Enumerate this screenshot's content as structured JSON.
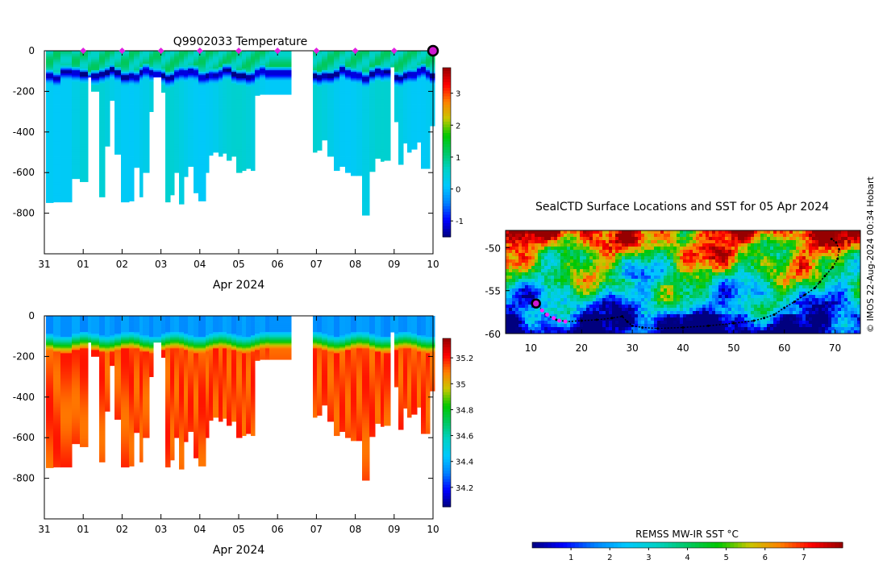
{
  "chart_data": [
    {
      "type": "heatmap",
      "id": "temperature",
      "title": "Q9902033  Temperature",
      "xlabel": "Apr 2024",
      "x_tick_labels": [
        "31",
        "01",
        "02",
        "03",
        "04",
        "05",
        "06",
        "07",
        "08",
        "09",
        "10"
      ],
      "x_range_days": [
        0,
        10
      ],
      "ylim": [
        -1000,
        0
      ],
      "y_ticks": [
        0,
        -200,
        -400,
        -600,
        -800
      ],
      "colorbar": {
        "min": -1.5,
        "max": 3.8,
        "ticks": [
          -1,
          0,
          1,
          2,
          3
        ],
        "colors": [
          "#00007f",
          "#0000ff",
          "#0080ff",
          "#00c8ff",
          "#00d2c8",
          "#00c864",
          "#00c800",
          "#c8c800",
          "#ff8000",
          "#ff0000",
          "#960000"
        ]
      },
      "profile_marker_days": [
        1,
        2,
        3,
        4,
        5,
        6,
        7,
        8,
        9
      ],
      "current_marker_day": 10,
      "gap_days": [
        6.35,
        6.9
      ],
      "profiles_note": "dive profiles: upper ~100 m warm (~0.5-1.2 °C), cold layer near 120-130 m (~-1.3 °C), deeper water ~0.3-0.5 °C"
    },
    {
      "type": "heatmap",
      "id": "salinity",
      "title": "",
      "xlabel": "Apr 2024",
      "x_tick_labels": [
        "31",
        "01",
        "02",
        "03",
        "04",
        "05",
        "06",
        "07",
        "08",
        "09",
        "10"
      ],
      "x_range_days": [
        0,
        10
      ],
      "ylim": [
        -1000,
        0
      ],
      "y_ticks": [
        0,
        -200,
        -400,
        -600,
        -800
      ],
      "colorbar": {
        "min": 34.05,
        "max": 35.35,
        "ticks": [
          34.2,
          34.4,
          34.6,
          34.8,
          35,
          35.2
        ],
        "colors": [
          "#00007f",
          "#0000ff",
          "#0080ff",
          "#00c8ff",
          "#00d2c8",
          "#00c864",
          "#00c800",
          "#c8c800",
          "#ff8000",
          "#ff0000",
          "#960000"
        ]
      },
      "profiles_note": "fresh surface (~34.3) above ~100 m, halocline 100-200 m, saline deep water (~35.2)"
    },
    {
      "type": "heatmap",
      "id": "sst_map",
      "title": "SealCTD Surface Locations and SST for 05 Apr 2024",
      "xlim": [
        5,
        75
      ],
      "ylim": [
        -60,
        -48
      ],
      "x_ticks": [
        10,
        20,
        30,
        40,
        50,
        60,
        70
      ],
      "y_ticks": [
        -50,
        -55,
        -60
      ],
      "track": [
        [
          11,
          -56.5
        ],
        [
          13,
          -57.8
        ],
        [
          15,
          -58.4
        ],
        [
          17,
          -58.6
        ],
        [
          20,
          -58.5
        ],
        [
          23,
          -58.4
        ],
        [
          26,
          -58.2
        ],
        [
          28,
          -58.0
        ],
        [
          29,
          -58.6
        ],
        [
          30,
          -59.1
        ],
        [
          32,
          -59.3
        ],
        [
          35,
          -59.4
        ],
        [
          40,
          -59.3
        ],
        [
          45,
          -59.1
        ],
        [
          50,
          -58.8
        ],
        [
          54,
          -58.5
        ],
        [
          56,
          -58.2
        ],
        [
          58,
          -57.8
        ],
        [
          60,
          -57.0
        ],
        [
          62,
          -56.3
        ],
        [
          64,
          -55.5
        ],
        [
          66,
          -54.7
        ],
        [
          67,
          -54.0
        ],
        [
          68,
          -53.3
        ],
        [
          69.5,
          -52.3
        ],
        [
          70.5,
          -51.3
        ],
        [
          70.8,
          -50.2
        ],
        [
          70.2,
          -49.4
        ],
        [
          69.3,
          -49.0
        ]
      ],
      "recent_positions": [
        [
          11,
          -56.5
        ],
        [
          12.2,
          -57.3
        ],
        [
          13.2,
          -57.8
        ],
        [
          14.5,
          -58.2
        ],
        [
          15.6,
          -58.5
        ],
        [
          16.8,
          -58.6
        ]
      ],
      "current_position": [
        11,
        -56.5
      ],
      "colorbar": {
        "label": "REMSS MW-IR SST °C",
        "min": 0,
        "max": 8,
        "ticks": [
          1,
          2,
          3,
          4,
          5,
          6,
          7
        ],
        "colors": [
          "#00007f",
          "#0000ff",
          "#0080ff",
          "#00c8ff",
          "#00d2c8",
          "#00c864",
          "#00c800",
          "#c8c800",
          "#ff8000",
          "#ff0000",
          "#960000"
        ]
      }
    }
  ],
  "credit": "© IMOS 22-Aug-2024 00:34 Hobart"
}
